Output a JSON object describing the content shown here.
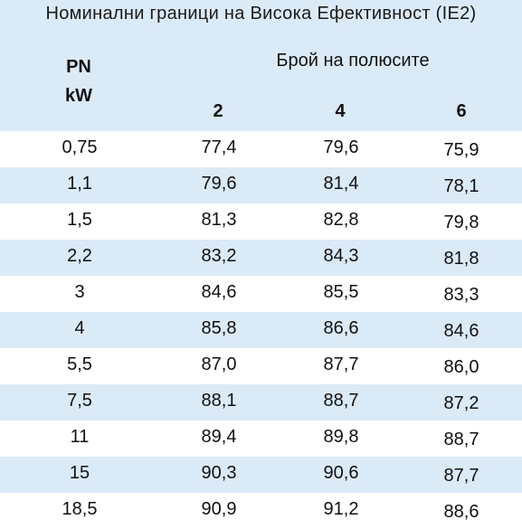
{
  "title": "Номинални граници на Висока  Ефективност (IE2)",
  "header": {
    "pn_line1": "PN",
    "pn_line2": "kW",
    "poles_label": "Брой на полюсите",
    "columns": [
      "2",
      "4",
      "6"
    ]
  },
  "rows": [
    {
      "pn": "0,75",
      "p2": "77,4",
      "p4": "79,6",
      "p6": "75,9"
    },
    {
      "pn": "1,1",
      "p2": "79,6",
      "p4": "81,4",
      "p6": "78,1"
    },
    {
      "pn": "1,5",
      "p2": "81,3",
      "p4": "82,8",
      "p6": "79,8"
    },
    {
      "pn": "2,2",
      "p2": "83,2",
      "p4": "84,3",
      "p6": "81,8"
    },
    {
      "pn": "3",
      "p2": "84,6",
      "p4": "85,5",
      "p6": "83,3"
    },
    {
      "pn": "4",
      "p2": "85,8",
      "p4": "86,6",
      "p6": "84,6"
    },
    {
      "pn": "5,5",
      "p2": "87,0",
      "p4": "87,7",
      "p6": "86,0"
    },
    {
      "pn": "7,5",
      "p2": "88,1",
      "p4": "88,7",
      "p6": "87,2"
    },
    {
      "pn": "11",
      "p2": "89,4",
      "p4": "89,8",
      "p6": "88,7"
    },
    {
      "pn": "15",
      "p2": "90,3",
      "p4": "90,6",
      "p6": "87,7"
    },
    {
      "pn": "18,5",
      "p2": "90,9",
      "p4": "91,2",
      "p6": "88,6"
    }
  ],
  "colors": {
    "shade": "#dbeaf7",
    "background": "#ffffff",
    "text": "#111111"
  }
}
